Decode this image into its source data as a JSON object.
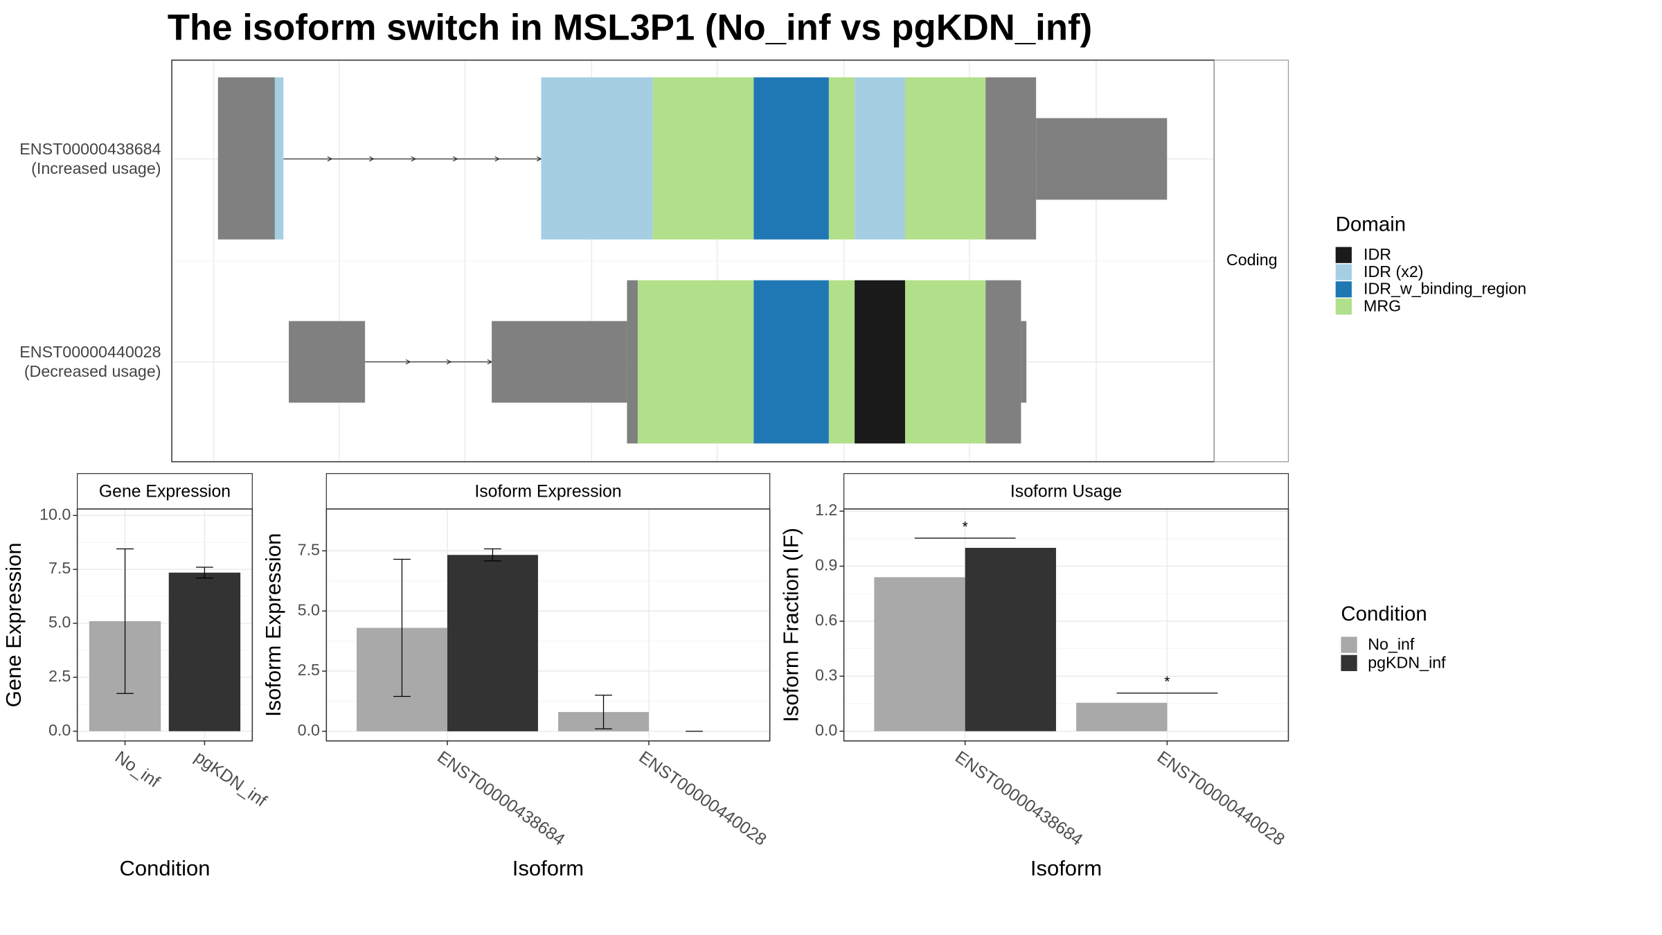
{
  "title": "The isoform switch in MSL3P1 (No_inf vs pgKDN_inf)",
  "transcript_plot": {
    "isoforms": [
      [
        "ENST00000438684",
        "(Increased usage)"
      ],
      [
        "ENST00000440028",
        "(Decreased usage)"
      ]
    ],
    "facet": "Coding",
    "legend": {
      "title": "Domain",
      "items": [
        {
          "name": "IDR",
          "color": "#1a1a1a"
        },
        {
          "name": "IDR (x2)",
          "color": "#a6cee3"
        },
        {
          "name": "IDR_w_binding_region",
          "color": "#1f78b4"
        },
        {
          "name": "MRG",
          "color": "#b2df8a"
        }
      ]
    }
  },
  "condition_legend": {
    "title": "Condition",
    "items": [
      {
        "name": "No_inf",
        "color": "#a9a9a9"
      },
      {
        "name": "pgKDN_inf",
        "color": "#333333"
      }
    ]
  },
  "chart_data": [
    {
      "type": "bar",
      "title": "Gene Expression",
      "xlabel": "Condition",
      "ylabel": "Gene Expression",
      "categories": [
        "No_inf",
        "pgKDN_inf"
      ],
      "values": [
        5.1,
        7.35
      ],
      "errors": [
        3.35,
        0.25
      ],
      "colors": [
        "#a9a9a9",
        "#333333"
      ],
      "ylim": [
        -0.45,
        10.3
      ],
      "yticks": [
        {
          "value": 0,
          "label": "0.0"
        },
        2.5,
        {
          "value": 5,
          "label": "5.0"
        },
        7.5,
        {
          "value": 10,
          "label": "10.0"
        }
      ],
      "grid": true
    },
    {
      "type": "grouped_bar",
      "title": "Isoform Expression",
      "xlabel": "Isoform",
      "ylabel": "Isoform Expression",
      "categories": [
        "ENST00000438684",
        "ENST00000440028"
      ],
      "series": [
        {
          "name": "No_inf",
          "color": "#a9a9a9",
          "values": [
            4.3,
            0.8
          ],
          "errors": [
            2.85,
            0.7
          ]
        },
        {
          "name": "pgKDN_inf",
          "color": "#333333",
          "values": [
            7.33,
            0
          ],
          "errors": [
            0.25,
            0
          ]
        }
      ],
      "ylim": [
        -0.4,
        9.24
      ],
      "yticks": [
        {
          "value": 0,
          "label": "0.0"
        },
        2.5,
        {
          "value": 5,
          "label": "5.0"
        },
        7.5
      ],
      "grid": true
    },
    {
      "type": "grouped_bar",
      "title": "Isoform Usage",
      "xlabel": "Isoform",
      "ylabel": "Isoform Fraction (IF)",
      "categories": [
        "ENST00000438684",
        "ENST00000440028"
      ],
      "series": [
        {
          "name": "No_inf",
          "color": "#a9a9a9",
          "values": [
            0.84,
            0.155
          ]
        },
        {
          "name": "pgKDN_inf",
          "color": "#333333",
          "values": [
            1.0,
            0
          ]
        }
      ],
      "annotations": [
        "*",
        "*"
      ],
      "ylim": [
        -0.053,
        1.212
      ],
      "yticks": [
        {
          "value": 0,
          "label": "0.0"
        },
        {
          "value": 0.3,
          "label": "0.3"
        },
        {
          "value": 0.6,
          "label": "0.6"
        },
        {
          "value": 0.9,
          "label": "0.9"
        },
        {
          "value": 1.2,
          "label": "1.2"
        }
      ],
      "grid": true
    }
  ]
}
